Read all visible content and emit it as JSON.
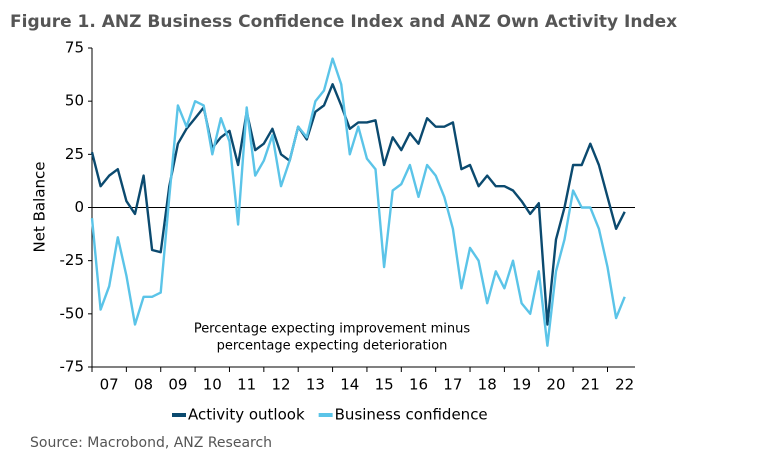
{
  "chart_data": {
    "type": "line",
    "title": "Figure 1. ANZ Business Confidence Index and ANZ Own Activity Index",
    "y_label": "Net Balance",
    "annotation": [
      "Percentage expecting improvement minus",
      "percentage expecting deterioration"
    ],
    "source": "Source: Macrobond, ANZ Research",
    "x": [
      7,
      7.25,
      7.5,
      7.75,
      8,
      8.25,
      8.5,
      8.75,
      9,
      9.25,
      9.5,
      9.75,
      10,
      10.25,
      10.5,
      10.75,
      11,
      11.25,
      11.5,
      11.75,
      12,
      12.25,
      12.5,
      12.75,
      13,
      13.25,
      13.5,
      13.75,
      14,
      14.25,
      14.5,
      14.75,
      15,
      15.25,
      15.5,
      15.75,
      16,
      16.25,
      16.5,
      16.75,
      17,
      17.25,
      17.5,
      17.75,
      18,
      18.25,
      18.5,
      18.75,
      19,
      19.25,
      19.5,
      19.75,
      20,
      20.25,
      20.5,
      20.75,
      21,
      21.25,
      21.5,
      21.75,
      22,
      22.25,
      22.5
    ],
    "series": [
      {
        "name": "Activity outlook",
        "color": "#0b4a6f",
        "values": [
          26,
          10,
          15,
          18,
          3,
          -3,
          15,
          -20,
          -21,
          10,
          30,
          37,
          42,
          47,
          28,
          33,
          36,
          20,
          45,
          27,
          30,
          37,
          25,
          22,
          38,
          32,
          45,
          48,
          58,
          48,
          37,
          40,
          40,
          41,
          20,
          33,
          27,
          35,
          30,
          42,
          38,
          38,
          40,
          18,
          20,
          10,
          15,
          10,
          10,
          8,
          3,
          -3,
          2,
          -55,
          -15,
          0,
          20,
          20,
          30,
          20,
          5,
          -10,
          -2
        ]
      },
      {
        "name": "Business confidence",
        "color": "#5bc4e8",
        "values": [
          -5,
          -48,
          -37,
          -14,
          -32,
          -55,
          -42,
          -42,
          -40,
          5,
          48,
          38,
          50,
          48,
          25,
          42,
          31,
          -8,
          47,
          15,
          22,
          34,
          10,
          22,
          38,
          33,
          50,
          55,
          70,
          58,
          25,
          38,
          23,
          18,
          -28,
          8,
          11,
          20,
          5,
          20,
          15,
          5,
          -10,
          -38,
          -19,
          -25,
          -45,
          -30,
          -38,
          -25,
          -45,
          -50,
          -30,
          -65,
          -30,
          -15,
          8,
          0,
          0,
          -10,
          -28,
          -52,
          -42
        ]
      }
    ],
    "xlim": [
      7,
      22.8
    ],
    "xticks": [
      {
        "value": 7.5,
        "label": "07"
      },
      {
        "value": 8.5,
        "label": "08"
      },
      {
        "value": 9.5,
        "label": "09"
      },
      {
        "value": 10.5,
        "label": "10"
      },
      {
        "value": 11.5,
        "label": "11"
      },
      {
        "value": 12.5,
        "label": "12"
      },
      {
        "value": 13.5,
        "label": "13"
      },
      {
        "value": 14.5,
        "label": "14"
      },
      {
        "value": 15.5,
        "label": "15"
      },
      {
        "value": 16.5,
        "label": "16"
      },
      {
        "value": 17.5,
        "label": "17"
      },
      {
        "value": 18.5,
        "label": "18"
      },
      {
        "value": 19.5,
        "label": "19"
      },
      {
        "value": 20.5,
        "label": "20"
      },
      {
        "value": 21.5,
        "label": "21"
      },
      {
        "value": 22.5,
        "label": "22"
      }
    ],
    "ylim": [
      -75,
      75
    ],
    "yticks": [
      -75,
      -50,
      -25,
      0,
      25,
      50,
      75
    ],
    "grid": false,
    "legend": "bottom"
  }
}
